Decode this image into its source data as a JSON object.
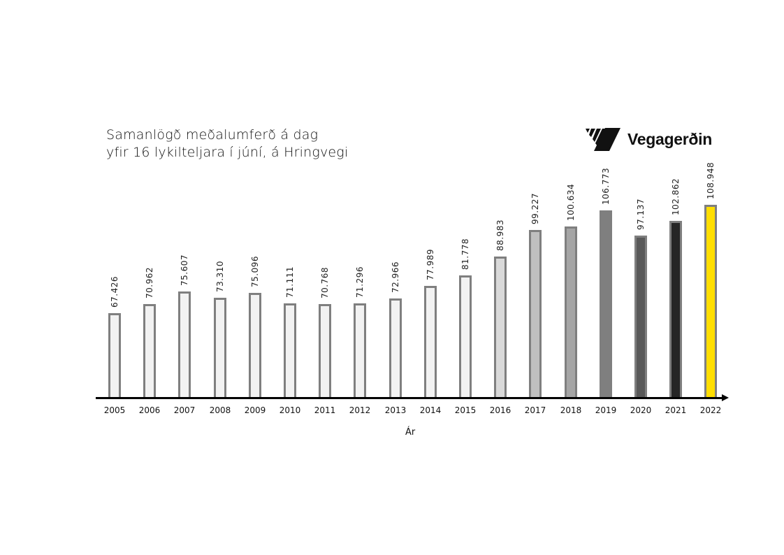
{
  "title": {
    "line1": "Samanlögð meðalumferð á dag",
    "line2": "yfir 16 lykilteljara í júní, á Hringvegi"
  },
  "logo": {
    "text": "Vegagerðin"
  },
  "chart_data": {
    "type": "bar",
    "title": "Samanlögð meðalumferð á dag yfir 16 lykilteljara í júní, á Hringvegi",
    "xlabel": "Ár",
    "ylabel": "",
    "categories": [
      "2005",
      "2006",
      "2007",
      "2008",
      "2009",
      "2010",
      "2011",
      "2012",
      "2013",
      "2014",
      "2015",
      "2016",
      "2017",
      "2018",
      "2019",
      "2020",
      "2021",
      "2022"
    ],
    "values": [
      67426,
      70962,
      75607,
      73310,
      75096,
      71111,
      70768,
      71296,
      72966,
      77989,
      81778,
      88983,
      99227,
      100634,
      106773,
      97137,
      102862,
      108948
    ],
    "value_labels": [
      "67.426",
      "70.962",
      "75.607",
      "73.310",
      "75.096",
      "71.111",
      "70.768",
      "71.296",
      "72.966",
      "77.989",
      "81.778",
      "88.983",
      "99.227",
      "100.634",
      "106.773",
      "97.137",
      "102.862",
      "108.948"
    ],
    "bar_colors": [
      "#f2f2f2",
      "#f2f2f2",
      "#f2f2f2",
      "#f2f2f2",
      "#f2f2f2",
      "#f2f2f2",
      "#f2f2f2",
      "#f2f2f2",
      "#f2f2f2",
      "#f2f2f2",
      "#f2f2f2",
      "#d9d9d9",
      "#bfbfbf",
      "#a5a5a5",
      "#7f7f7f",
      "#595959",
      "#262626",
      "#ffde00"
    ],
    "grid": false,
    "legend": null,
    "y_axis_visible": false
  }
}
